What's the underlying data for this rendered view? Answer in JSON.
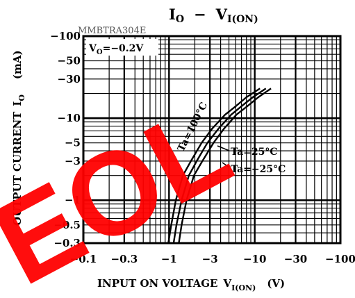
{
  "chart_data": {
    "type": "line",
    "title": "I",
    "title_sub": "O",
    "title_dash": "−",
    "title_v": "V",
    "title_v_sub": "I(ON)",
    "part_number": "MMBTRA304E",
    "condition_prefix": "V",
    "condition_sub": "O",
    "condition_value": "=−0.2V",
    "xlabel": "INPUT  ON  VOLTAGE",
    "xlabel_sym": "V",
    "xlabel_sub": "I(ON)",
    "xlabel_unit": "(V)",
    "ylabel": "OUTPUT  CURRENT",
    "ylabel_sym": "I",
    "ylabel_sub": "O",
    "ylabel_unit": "(mA)",
    "x_scale": "log",
    "y_scale": "log",
    "x_axis_direction": "negative values, magnitude increasing to the right",
    "y_axis_direction": "negative values, magnitude increasing upward",
    "xlim": [
      -0.1,
      -100
    ],
    "ylim": [
      -0.3,
      -100
    ],
    "x_ticks": [
      {
        "value": -0.1,
        "label": "−0.1"
      },
      {
        "value": -0.3,
        "label": "−0.3"
      },
      {
        "value": -1,
        "label": "−1"
      },
      {
        "value": -3,
        "label": "−3"
      },
      {
        "value": -10,
        "label": "−10"
      },
      {
        "value": -30,
        "label": "−30"
      },
      {
        "value": -100,
        "label": "−100"
      }
    ],
    "y_ticks": [
      {
        "value": -100,
        "label": "−100"
      },
      {
        "value": -50,
        "label": "−50"
      },
      {
        "value": -30,
        "label": "−30"
      },
      {
        "value": -10,
        "label": "−10"
      },
      {
        "value": -5,
        "label": "−5"
      },
      {
        "value": -3,
        "label": "−3"
      },
      {
        "value": -1,
        "label": "−1"
      },
      {
        "value": -0.5,
        "label": "−0.5"
      },
      {
        "value": -0.3,
        "label": "−0.3"
      }
    ],
    "grid": true,
    "series": [
      {
        "name": "Ta=100°C",
        "label_text": "Ta=100°C",
        "x": [
          -0.98,
          -1.06,
          -1.2,
          -1.45,
          -1.8,
          -2.4,
          -3.2,
          -4.5,
          -6.0,
          -8.0,
          -11.5
        ],
        "y": [
          -0.3,
          -0.5,
          -1.0,
          -2.0,
          -3.0,
          -5.0,
          -7.5,
          -11.0,
          -14.0,
          -18.0,
          -23.0
        ]
      },
      {
        "name": "Ta=25°C",
        "label_text": "Ta=25°C",
        "x": [
          -1.13,
          -1.22,
          -1.4,
          -1.7,
          -2.1,
          -2.8,
          -3.8,
          -5.3,
          -7.0,
          -9.5,
          -13.5
        ],
        "y": [
          -0.3,
          -0.5,
          -1.0,
          -2.0,
          -3.0,
          -5.0,
          -7.5,
          -11.0,
          -14.0,
          -18.0,
          -23.0
        ]
      },
      {
        "name": "Ta=−25°C",
        "label_text": "Ta=−25°C",
        "x": [
          -1.3,
          -1.4,
          -1.6,
          -1.95,
          -2.45,
          -3.3,
          -4.4,
          -6.1,
          -8.2,
          -11.0,
          -15.5
        ],
        "y": [
          -0.3,
          -0.5,
          -1.0,
          -2.0,
          -3.0,
          -5.0,
          -7.5,
          -11.0,
          -14.0,
          -18.0,
          -23.0
        ]
      }
    ]
  },
  "watermark": {
    "text": "EOL",
    "color": "#ff0000"
  }
}
